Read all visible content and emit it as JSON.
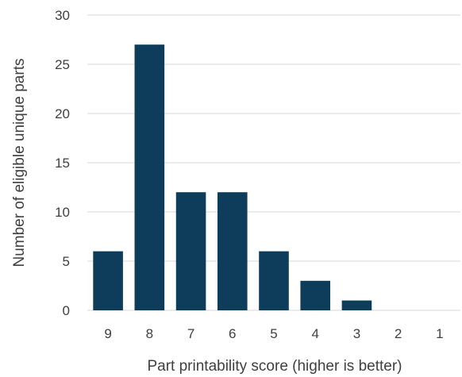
{
  "chart_data": {
    "type": "bar",
    "title": "",
    "xlabel": "Part printability score (higher is better)",
    "ylabel": "Number of eligible unique parts",
    "categories": [
      "9",
      "8",
      "7",
      "6",
      "5",
      "4",
      "3",
      "2",
      "1"
    ],
    "values": [
      6,
      27,
      12,
      12,
      6,
      3,
      1,
      0,
      0
    ],
    "ylim": [
      0,
      30
    ],
    "yticks": [
      0,
      5,
      10,
      15,
      20,
      25,
      30
    ],
    "grid": true,
    "legend": "none",
    "bar_color": "#0d3d5a",
    "grid_color": "#d9d9d9"
  }
}
